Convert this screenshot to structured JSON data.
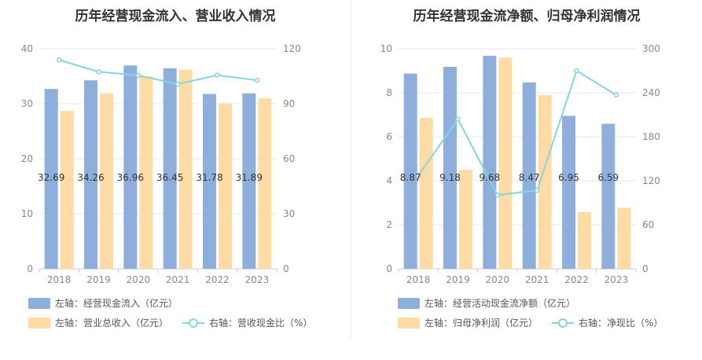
{
  "colors": {
    "blue": "#8eaedc",
    "orange": "#ffdba6",
    "line": "#86d4dc",
    "grid": "#e6e6f0",
    "text": "#333333"
  },
  "chart_data": [
    {
      "type": "bar",
      "title": "历年经营现金流入、营业收入情况",
      "categories": [
        "2018",
        "2019",
        "2020",
        "2021",
        "2022",
        "2023"
      ],
      "left_ylim": [
        0,
        40
      ],
      "left_ticks": [
        "0",
        "10",
        "20",
        "30",
        "40"
      ],
      "right_ylim": [
        0,
        120
      ],
      "right_ticks": [
        "0",
        "30",
        "60",
        "90",
        "120"
      ],
      "series": [
        {
          "name": "左轴：经营现金流入（亿元）",
          "axis": "left",
          "kind": "bar",
          "values": [
            32.69,
            34.26,
            36.96,
            36.45,
            31.78,
            31.89
          ]
        },
        {
          "name": "左轴：营业总收入（亿元）",
          "axis": "left",
          "kind": "bar",
          "values": [
            28.7,
            31.9,
            35.0,
            36.2,
            30.1,
            31.0
          ]
        },
        {
          "name": "右轴：营收现金比（%）",
          "axis": "right",
          "kind": "line",
          "values": [
            113.9,
            107.4,
            105.5,
            100.7,
            105.6,
            102.8
          ]
        }
      ],
      "data_labels": [
        "32.69",
        "34.26",
        "36.96",
        "36.45",
        "31.78",
        "31.89"
      ]
    },
    {
      "type": "bar",
      "title": "历年经营现金流净额、归母净利润情况",
      "categories": [
        "2018",
        "2019",
        "2020",
        "2021",
        "2022",
        "2023"
      ],
      "left_ylim": [
        0,
        10
      ],
      "left_ticks": [
        "0",
        "2",
        "4",
        "6",
        "8",
        "10"
      ],
      "right_ylim": [
        0,
        300
      ],
      "right_ticks": [
        "0",
        "60",
        "120",
        "180",
        "240",
        "300"
      ],
      "series": [
        {
          "name": "左轴：经营活动现金流净额（亿元）",
          "axis": "left",
          "kind": "bar",
          "values": [
            8.87,
            9.18,
            9.68,
            8.47,
            6.95,
            6.59
          ]
        },
        {
          "name": "左轴：归母净利润（亿元）",
          "axis": "left",
          "kind": "bar",
          "values": [
            6.86,
            4.5,
            9.6,
            7.9,
            2.57,
            2.77
          ]
        },
        {
          "name": "右轴：净现比（%）",
          "axis": "right",
          "kind": "line",
          "values": [
            127.0,
            204.0,
            100.5,
            107.0,
            270.0,
            237.0
          ]
        }
      ],
      "data_labels": [
        "8.87",
        "9.18",
        "9.68",
        "8.47",
        "6.95",
        "6.59"
      ]
    }
  ]
}
